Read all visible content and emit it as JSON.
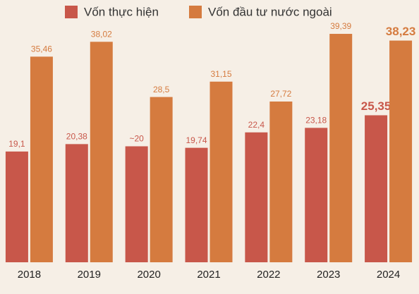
{
  "chart_data": {
    "type": "bar",
    "categories": [
      "2018",
      "2019",
      "2020",
      "2021",
      "2022",
      "2023",
      "2024"
    ],
    "series": [
      {
        "name": "Vốn thực hiện",
        "color": "#c8574a",
        "values": [
          19.1,
          20.38,
          20,
          19.74,
          22.4,
          23.18,
          25.35
        ],
        "value_labels": [
          "19,1",
          "20,38",
          "~20",
          "19,74",
          "22,4",
          "23,18",
          "25,35"
        ]
      },
      {
        "name": "Vốn đầu tư nước ngoài",
        "color": "#d57b3f",
        "values": [
          35.46,
          38.02,
          28.5,
          31.15,
          27.72,
          39.39,
          38.23
        ],
        "value_labels": [
          "35,46",
          "38,02",
          "28,5",
          "31,15",
          "27,72",
          "39,39",
          "38,23"
        ]
      }
    ],
    "ylim": [
      0,
      40
    ]
  }
}
